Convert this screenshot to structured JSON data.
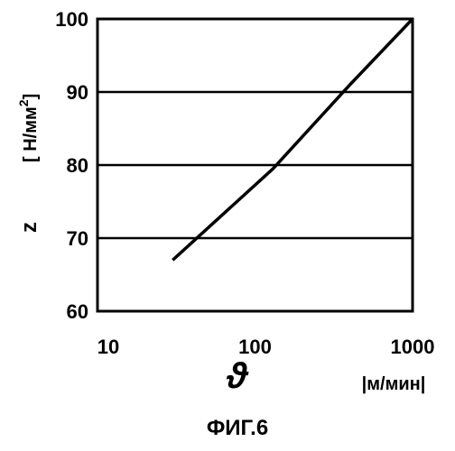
{
  "chart_data": {
    "type": "line",
    "x_scale": "log",
    "xlim": [
      10,
      1000
    ],
    "ylim": [
      60,
      100
    ],
    "x_ticks": [
      "10",
      "100",
      "1000"
    ],
    "y_ticks": [
      "60",
      "70",
      "80",
      "90",
      "100"
    ],
    "grid": "horizontal",
    "xlabel_symbol": "ϑ",
    "xlabel_unit": "|м/мин|",
    "ylabel_symbol": "z",
    "ylabel_unit": "[ Н/мм",
    "ylabel_unit_sup": "2",
    "ylabel_unit_close": "]",
    "series": [
      {
        "x": [
          30,
          130,
          400,
          1000
        ],
        "y": [
          67,
          79.5,
          91,
          100
        ]
      }
    ]
  },
  "caption": "ФИГ.6"
}
